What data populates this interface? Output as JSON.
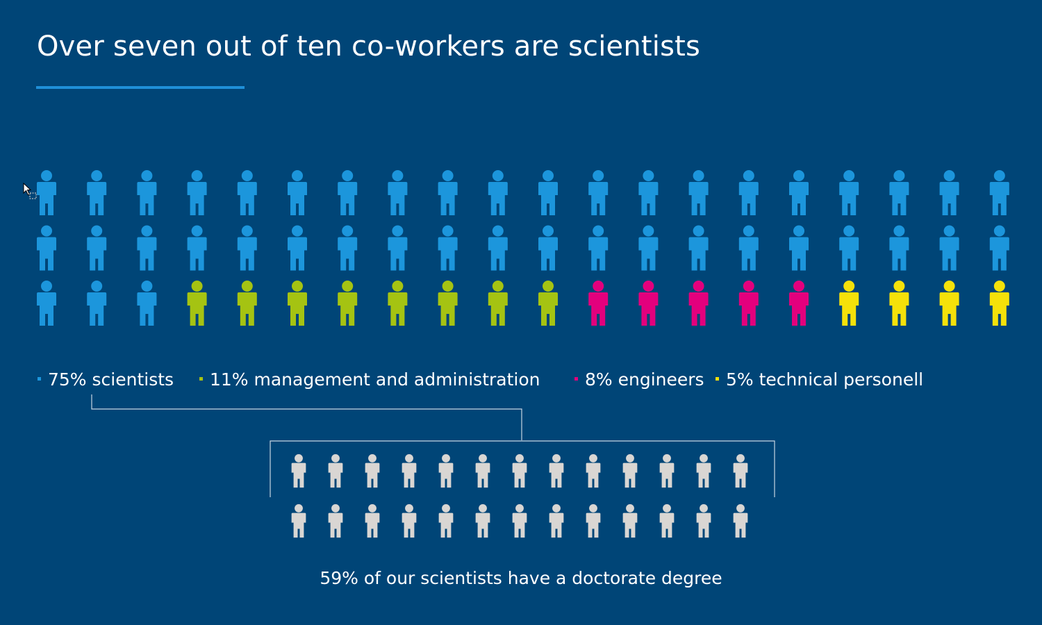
{
  "title": "Over seven out of ten co-workers are scientists",
  "colors": {
    "background": "#004577",
    "accent": "#1f8fd8",
    "scientists": "#1c96dc",
    "management": "#a5c312",
    "engineers": "#e3007d",
    "technical": "#f5e10a",
    "doctorate": "#d9d6d3",
    "connector": "#c9d5e2"
  },
  "legend": [
    {
      "label": "75% scientists",
      "color_key": "scientists"
    },
    {
      "label": "11% management and administration",
      "color_key": "management"
    },
    {
      "label": "8% engineers",
      "color_key": "engineers"
    },
    {
      "label": "5% technical personell",
      "color_key": "technical"
    }
  ],
  "footnote": "59% of our scientists have a doctorate degree",
  "chart_data": [
    {
      "type": "pictogram",
      "title": "Over seven out of ten co-workers are scientists",
      "categories": [
        "scientists",
        "management and administration",
        "engineers",
        "technical personell"
      ],
      "values_percent": [
        75,
        11,
        8,
        5
      ],
      "icon_counts": [
        43,
        8,
        5,
        4
      ],
      "rows": 3,
      "columns": 20
    },
    {
      "type": "pictogram",
      "description_label": "59% of our scientists have a doctorate degree",
      "value_percent": 59,
      "icon_count": 26,
      "rows": 2,
      "columns": 13
    }
  ]
}
